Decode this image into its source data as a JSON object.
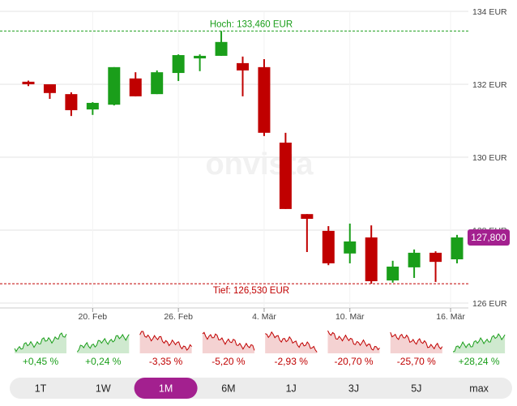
{
  "chart_data": {
    "type": "candlestick",
    "watermark": "onvista",
    "up_color": "#1a9e1a",
    "down_color": "#c00000",
    "categories": [
      null,
      null,
      null,
      "20. Feb",
      null,
      null,
      null,
      "26. Feb",
      null,
      null,
      null,
      "4. Mär",
      null,
      null,
      null,
      "10. Mär",
      null,
      null,
      null,
      null,
      null
    ],
    "xticks": [
      {
        "value": 3,
        "label": "20. Feb"
      },
      {
        "value": 7,
        "label": "26. Feb"
      },
      {
        "value": 11,
        "label": "4. Mär"
      },
      {
        "value": 15,
        "label": "10. Mär"
      },
      {
        "value": 19.7,
        "label": "16. Mär"
      }
    ],
    "open": [
      132.07,
      132.0,
      131.73,
      131.31,
      131.44,
      132.16,
      131.73,
      132.31,
      132.71,
      132.78,
      132.58,
      132.47,
      130.4,
      128.44,
      127.98,
      127.36,
      127.8,
      126.62,
      126.98,
      127.38,
      127.2
    ],
    "high": [
      132.1,
      132.0,
      131.78,
      131.51,
      132.47,
      132.33,
      132.38,
      132.82,
      132.82,
      133.46,
      132.76,
      132.69,
      130.67,
      128.44,
      128.11,
      128.18,
      128.13,
      127.16,
      127.47,
      127.42,
      127.87
    ],
    "low": [
      131.95,
      131.6,
      131.13,
      131.16,
      131.42,
      131.67,
      131.73,
      132.09,
      132.36,
      132.78,
      131.67,
      130.58,
      128.58,
      127.4,
      127.04,
      127.09,
      126.53,
      126.56,
      126.69,
      126.58,
      127.09
    ],
    "close": [
      132.0,
      131.76,
      131.29,
      131.49,
      132.47,
      131.67,
      132.33,
      132.8,
      132.78,
      133.16,
      132.38,
      130.67,
      128.58,
      128.31,
      127.09,
      127.69,
      126.6,
      127.0,
      127.38,
      127.13,
      127.8
    ],
    "ylim": [
      126,
      134
    ],
    "yticks": [
      {
        "value": 126,
        "label": "126 EUR"
      },
      {
        "value": 128,
        "label": "128 EUR"
      },
      {
        "value": 130,
        "label": "130 EUR"
      },
      {
        "value": 132,
        "label": "132 EUR"
      },
      {
        "value": 134,
        "label": "134 EUR"
      }
    ],
    "high_line": {
      "value": 133.46,
      "label": "Hoch: 133,460 EUR"
    },
    "low_line": {
      "value": 126.53,
      "label": "Tief: 126,530 EUR"
    },
    "last_price": {
      "value": 127.8,
      "label": "127,800"
    },
    "grid": true
  },
  "performance": [
    "+0,45 %",
    "+0,24 %",
    "-3,35 %",
    "-5,20 %",
    "-2,93 %",
    "-20,70 %",
    "-25,70 %",
    "+28,24 %"
  ],
  "periods": [
    "1T",
    "1W",
    "1M",
    "6M",
    "1J",
    "3J",
    "5J",
    "max"
  ],
  "active_period": 2
}
